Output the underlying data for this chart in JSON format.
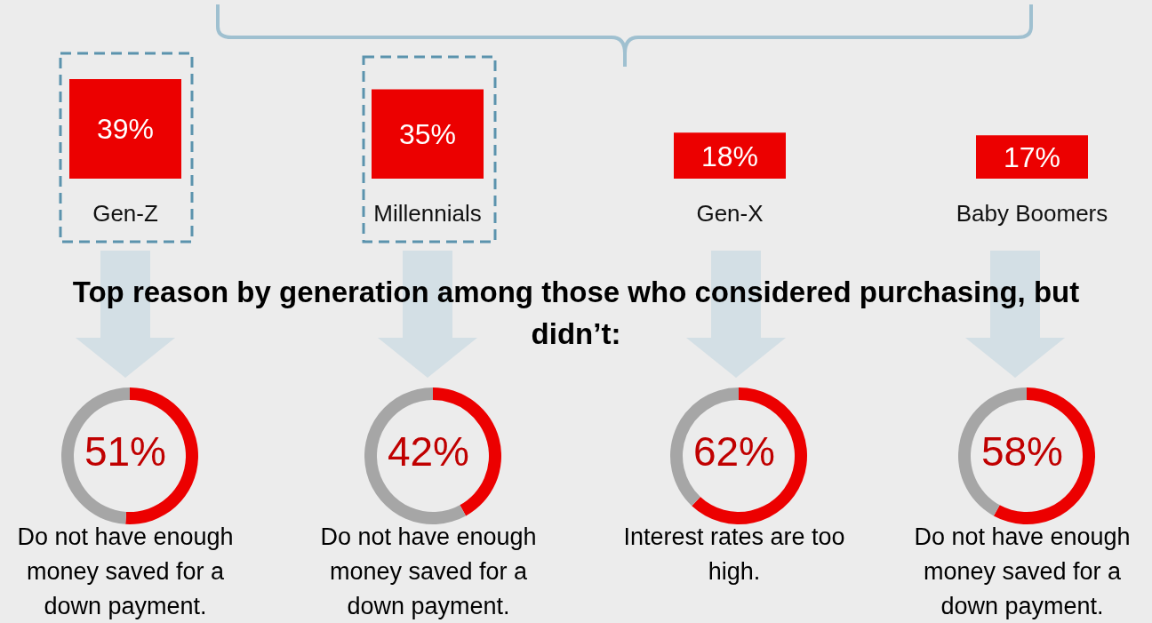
{
  "chart_data": [
    {
      "type": "bar",
      "categories": [
        "Gen-Z",
        "Millennials",
        "Gen-X",
        "Baby Boomers"
      ],
      "values": [
        39,
        35,
        18,
        17
      ],
      "color": "#ec0000",
      "data_labels": true,
      "value_labels": [
        "39%",
        "35%",
        "18%",
        "17%"
      ]
    },
    {
      "type": "donut",
      "title": "Top reason by generation among those who considered purchasing, but didn’t:",
      "categories": [
        null,
        null
      ],
      "values": [
        51,
        49
      ],
      "colors": [
        "#ec0000",
        "#a6a6a6"
      ],
      "annotations": [
        "51%",
        "Do not have enough money saved for a down payment."
      ]
    },
    {
      "type": "donut",
      "categories": [
        null,
        null
      ],
      "values": [
        42,
        58
      ],
      "colors": [
        "#ec0000",
        "#a6a6a6"
      ],
      "annotations": [
        "42%",
        "Do not have enough money saved for a down payment."
      ]
    },
    {
      "type": "donut",
      "categories": [
        null,
        null
      ],
      "values": [
        62,
        38
      ],
      "colors": [
        "#ec0000",
        "#a6a6a6"
      ],
      "annotations": [
        "62%",
        "Interest rates are too high."
      ]
    },
    {
      "type": "donut",
      "categories": [
        null,
        null
      ],
      "values": [
        58,
        42
      ],
      "colors": [
        "#ec0000",
        "#a6a6a6"
      ],
      "annotations": [
        "58%",
        "Do not have enough money saved for a down payment."
      ]
    }
  ]
}
